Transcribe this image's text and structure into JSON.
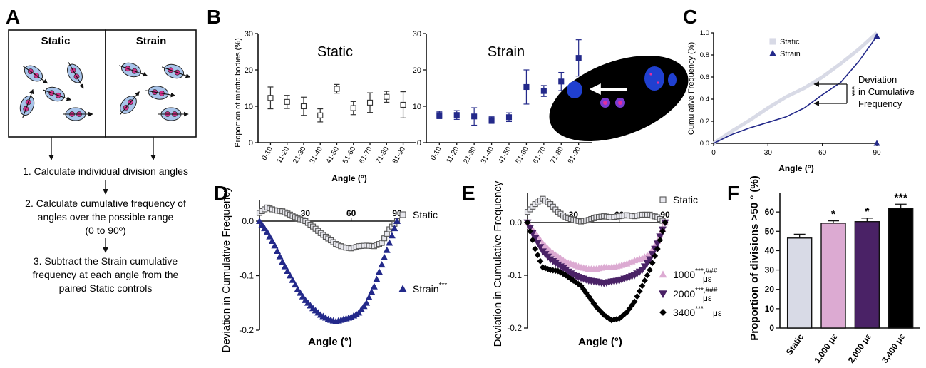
{
  "panels": {
    "A": {
      "letter": "A",
      "static_title": "Static",
      "strain_title": "Strain",
      "steps": [
        "1. Calculate individual division angles",
        "2. Calculate cumulative frequency of",
        "angles over the possible range",
        "(0 to 90º)",
        "3. Subtract the Strain cumulative",
        "frequency at each angle from the",
        "paired Static controls"
      ]
    },
    "B": {
      "letter": "B"
    },
    "C": {
      "letter": "C",
      "annotation": [
        "Deviation",
        "in Cumulative",
        "Frequency"
      ],
      "sig": "***"
    },
    "D": {
      "letter": "D"
    },
    "E": {
      "letter": "E"
    },
    "F": {
      "letter": "F"
    }
  },
  "colors": {
    "static_fill": "#d8dae6",
    "strain": "#23298a",
    "pink": "#dcaad2",
    "purple": "#4a2266",
    "black": "#000000",
    "cell_blue": "#2040d0",
    "micrograph_bg": "#000000"
  },
  "chart_data": [
    {
      "id": "B-static",
      "type": "scatter",
      "title": "Static",
      "ylabel": "Proportion of mitotic bodies (%)",
      "xlabel": "Angle (°)",
      "categories": [
        "0-10",
        "11-20",
        "21-30",
        "31-40",
        "41-50",
        "51-60",
        "61-70",
        "71-80",
        "81-90"
      ],
      "values": [
        12.3,
        11.2,
        10.0,
        7.5,
        14.8,
        9.5,
        11.0,
        12.6,
        10.4
      ],
      "errors": [
        3.0,
        1.8,
        2.5,
        1.8,
        1.2,
        1.8,
        2.7,
        1.5,
        3.6
      ],
      "ylim": [
        0,
        30
      ],
      "yticks": [
        "0",
        "10",
        "20",
        "30"
      ]
    },
    {
      "id": "B-strain",
      "type": "scatter",
      "title": "Strain",
      "categories": [
        "0-10",
        "11-20",
        "21-30",
        "31-40",
        "41-50",
        "51-60",
        "61-70",
        "71-80",
        "81-90"
      ],
      "values": [
        7.6,
        7.6,
        7.2,
        6.2,
        7.0,
        15.3,
        14.2,
        16.8,
        23.3
      ],
      "errors": [
        1.0,
        1.2,
        2.4,
        0.9,
        1.2,
        4.7,
        1.5,
        2.5,
        5.0
      ],
      "ylim": [
        0,
        30
      ],
      "yticks": [
        "0",
        "10",
        "20",
        "30"
      ]
    },
    {
      "id": "C",
      "type": "line",
      "ylabel": "Cumulative Frequency (%)",
      "xlabel": "Angle (°)",
      "xlim": [
        0,
        90
      ],
      "ylim": [
        0,
        1.0
      ],
      "xticks": [
        "0",
        "30",
        "60",
        "90"
      ],
      "yticks": [
        "0.0",
        "0.2",
        "0.4",
        "0.6",
        "0.8",
        "1.0"
      ],
      "series": [
        {
          "name": "Static",
          "x": [
            0,
            10,
            20,
            30,
            40,
            50,
            60,
            70,
            80,
            90
          ],
          "y": [
            0,
            0.11,
            0.21,
            0.32,
            0.42,
            0.5,
            0.6,
            0.72,
            0.85,
            1.0
          ]
        },
        {
          "name": "Strain",
          "x": [
            0,
            10,
            20,
            30,
            40,
            50,
            60,
            70,
            80,
            90
          ],
          "y": [
            0,
            0.08,
            0.14,
            0.19,
            0.24,
            0.32,
            0.44,
            0.55,
            0.74,
            0.97
          ]
        }
      ]
    },
    {
      "id": "D",
      "type": "scatter",
      "ylabel": "Deviation in Cumulative Frequency",
      "xlabel": "Angle (°)",
      "xlim": [
        0,
        90
      ],
      "ylim": [
        -0.2,
        0.04
      ],
      "xticks": [
        "30",
        "60",
        "90"
      ],
      "yticks": [
        "0.0",
        "-0.1",
        "-0.2"
      ],
      "series": [
        {
          "name": "Static",
          "x": [
            0,
            5,
            10,
            15,
            20,
            25,
            30,
            35,
            40,
            45,
            50,
            55,
            60,
            65,
            70,
            75,
            80,
            85,
            90
          ],
          "y": [
            0.015,
            0.025,
            0.02,
            0.018,
            0.012,
            0.005,
            0.0,
            -0.01,
            -0.022,
            -0.032,
            -0.042,
            -0.048,
            -0.05,
            -0.046,
            -0.045,
            -0.046,
            -0.04,
            -0.015,
            0.0
          ]
        },
        {
          "name": "Strain***",
          "x": [
            0,
            5,
            10,
            15,
            20,
            25,
            30,
            35,
            40,
            45,
            50,
            55,
            60,
            65,
            70,
            75,
            80,
            85,
            90
          ],
          "y": [
            0,
            -0.02,
            -0.045,
            -0.075,
            -0.1,
            -0.125,
            -0.145,
            -0.16,
            -0.172,
            -0.18,
            -0.184,
            -0.18,
            -0.176,
            -0.168,
            -0.15,
            -0.12,
            -0.08,
            -0.04,
            0.0
          ]
        }
      ]
    },
    {
      "id": "E",
      "type": "scatter",
      "ylabel": "Deviation in Cumulative Frequency",
      "xlabel": "Angle (°)",
      "xlim": [
        0,
        90
      ],
      "ylim": [
        -0.2,
        0.04
      ],
      "xticks": [
        "30",
        "60",
        "90"
      ],
      "yticks": [
        "0.0",
        "-0.1",
        "-0.2"
      ],
      "series": [
        {
          "name": "Static",
          "x": [
            0,
            5,
            10,
            15,
            20,
            25,
            30,
            35,
            40,
            45,
            50,
            55,
            60,
            65,
            70,
            75,
            80,
            85,
            90
          ],
          "y": [
            0.02,
            0.035,
            0.045,
            0.035,
            0.02,
            0.01,
            0.005,
            0.002,
            0.005,
            0.01,
            0.012,
            0.01,
            0.012,
            0.014,
            0.012,
            0.015,
            0.015,
            0.01,
            0.0
          ]
        },
        {
          "name": "1000",
          "label": "1000",
          "sup": "***,###",
          "unit": "με",
          "x": [
            0,
            5,
            10,
            15,
            20,
            25,
            30,
            35,
            40,
            45,
            50,
            55,
            60,
            65,
            70,
            75,
            80,
            85,
            90
          ],
          "y": [
            0,
            -0.02,
            -0.04,
            -0.055,
            -0.065,
            -0.075,
            -0.08,
            -0.085,
            -0.088,
            -0.088,
            -0.085,
            -0.085,
            -0.082,
            -0.078,
            -0.072,
            -0.068,
            -0.06,
            -0.035,
            0.0
          ]
        },
        {
          "name": "2000",
          "label": "2000",
          "sup": "***,###",
          "unit": "με",
          "x": [
            0,
            5,
            10,
            15,
            20,
            25,
            30,
            35,
            40,
            45,
            50,
            55,
            60,
            65,
            70,
            75,
            80,
            85,
            90
          ],
          "y": [
            0,
            -0.03,
            -0.055,
            -0.07,
            -0.08,
            -0.09,
            -0.1,
            -0.105,
            -0.11,
            -0.112,
            -0.115,
            -0.112,
            -0.11,
            -0.105,
            -0.1,
            -0.09,
            -0.07,
            -0.04,
            0.0
          ]
        },
        {
          "name": "3400",
          "label": "3400",
          "sup": "***",
          "unit": "με",
          "x": [
            0,
            5,
            10,
            15,
            20,
            25,
            30,
            35,
            40,
            45,
            50,
            55,
            60,
            65,
            70,
            75,
            80,
            85,
            90
          ],
          "y": [
            0,
            -0.05,
            -0.085,
            -0.09,
            -0.092,
            -0.1,
            -0.11,
            -0.12,
            -0.14,
            -0.16,
            -0.175,
            -0.185,
            -0.182,
            -0.17,
            -0.15,
            -0.12,
            -0.09,
            -0.05,
            0.0
          ]
        }
      ]
    },
    {
      "id": "F",
      "type": "bar",
      "ylabel": "Proportion of divisions >50 ° (%)",
      "categories": [
        "Static",
        "1,000 με",
        "2,000 με",
        "3,400 με"
      ],
      "values": [
        46.5,
        54.2,
        55.0,
        62.0
      ],
      "errors": [
        2.0,
        1.2,
        1.8,
        2.0
      ],
      "significance": [
        "",
        "*",
        "*",
        "***"
      ],
      "ylim": [
        0,
        70
      ],
      "yticks": [
        "0",
        "10",
        "20",
        "30",
        "40",
        "50",
        "60"
      ]
    }
  ]
}
